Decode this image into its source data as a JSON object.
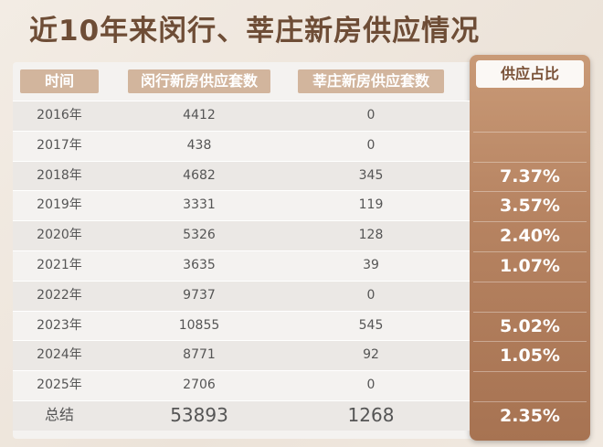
{
  "title": "近10年来闵行、莘庄新房供应情况",
  "table": {
    "header": [
      "时间",
      "闵行新房供应套数",
      "莘庄新房供应套数",
      "供应占比"
    ],
    "rows": [
      [
        "2016年",
        4412,
        0
      ],
      [
        "2017年",
        438,
        0
      ],
      [
        "2018年",
        4682,
        345,
        "7.37%"
      ],
      [
        "2019年",
        3331,
        119,
        "3.57%"
      ],
      [
        "2020年",
        5326,
        128,
        "2.40%"
      ],
      [
        "2021年",
        3635,
        39,
        "1.07%"
      ],
      [
        "2022年",
        9737,
        0
      ],
      [
        "2023年",
        10855,
        545,
        "5.02%"
      ],
      [
        "2024年",
        8771,
        92,
        "1.05%"
      ],
      [
        "2025年",
        2706,
        0
      ],
      [
        "总结",
        53893,
        1268,
        "2.35%"
      ]
    ]
  }
}
